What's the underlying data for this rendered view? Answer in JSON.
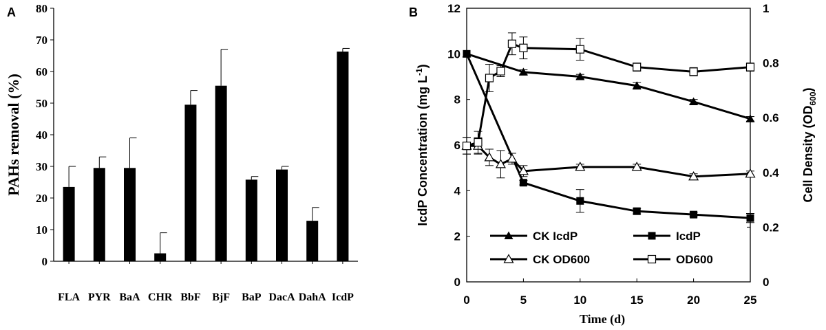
{
  "chart_data": [
    {
      "panel": "A",
      "type": "bar",
      "title": "",
      "xlabel": "",
      "ylabel": "PAHs  removal (%)",
      "ylim": [
        0,
        80
      ],
      "yticks": [
        0,
        10,
        20,
        30,
        40,
        50,
        60,
        70,
        80
      ],
      "categories": [
        "FLA",
        "PYR",
        "BaA",
        "CHR",
        "BbF",
        "BjF",
        "BaP",
        "DacA",
        "DahA",
        "IcdP"
      ],
      "values": [
        23.5,
        29.5,
        29.5,
        2.5,
        49.5,
        55.5,
        25.8,
        29.0,
        12.8,
        66.3
      ],
      "errors": [
        6.5,
        3.5,
        9.5,
        6.5,
        4.5,
        11.5,
        1.0,
        1.0,
        4.2,
        1.0
      ],
      "grid": false
    },
    {
      "panel": "B",
      "type": "line",
      "xlabel": "Time (d)",
      "ylabel_left": "IcdP Concentration (mg L",
      "ylabel_left_sup": "-1",
      "ylabel_left_end": ")",
      "ylabel_right": "Cell Density (OD",
      "ylabel_right_sub": "600",
      "ylabel_right_end": ")",
      "xlim": [
        0,
        25
      ],
      "xticks": [
        0,
        5,
        10,
        15,
        20,
        25
      ],
      "ylim_left": [
        0,
        12
      ],
      "yticks_left": [
        0,
        2,
        4,
        6,
        8,
        10,
        12
      ],
      "ylim_right": [
        0,
        1
      ],
      "yticks_right": [
        "0",
        "0.2",
        "0.4",
        "0.6",
        "0.8",
        "1"
      ],
      "yticks_right_values": [
        0,
        0.2,
        0.4,
        0.6,
        0.8,
        1
      ],
      "grid": false,
      "legend_position": "bottom-center",
      "series": [
        {
          "name": "CK IcdP",
          "axis": "left",
          "marker": "filled-triangle",
          "x": [
            0,
            5,
            10,
            15,
            20,
            25
          ],
          "y": [
            10.0,
            9.2,
            9.0,
            8.6,
            7.9,
            7.15
          ],
          "err": [
            0,
            0.1,
            0.1,
            0.15,
            0.1,
            0.1
          ]
        },
        {
          "name": "IcdP",
          "axis": "left",
          "marker": "filled-square",
          "x": [
            0,
            5,
            10,
            15,
            20,
            25
          ],
          "y": [
            10.0,
            4.35,
            3.55,
            3.1,
            2.95,
            2.8
          ],
          "err": [
            0,
            0.1,
            0.5,
            0.12,
            0.1,
            0.2
          ]
        },
        {
          "name": "CK OD600",
          "axis": "right",
          "marker": "open-triangle",
          "x": [
            0,
            1,
            2,
            3,
            4,
            5,
            10,
            15,
            20,
            25
          ],
          "y": [
            0.497,
            0.497,
            0.455,
            0.43,
            0.45,
            0.405,
            0.42,
            0.42,
            0.385,
            0.395
          ],
          "err": [
            0.03,
            0.03,
            0.03,
            0.05,
            0.02,
            0.02,
            0.01,
            0.01,
            0.01,
            0.01
          ]
        },
        {
          "name": "OD600",
          "axis": "right",
          "marker": "open-square",
          "x": [
            0,
            1,
            2,
            3,
            4,
            5,
            10,
            15,
            20,
            25
          ],
          "y": [
            0.497,
            0.51,
            0.745,
            0.77,
            0.87,
            0.855,
            0.85,
            0.785,
            0.768,
            0.785
          ],
          "err": [
            0.03,
            0.04,
            0.05,
            0.02,
            0.04,
            0.04,
            0.04,
            0.015,
            0.015,
            0.015
          ]
        }
      ]
    }
  ],
  "labels": {
    "panel_a": "A",
    "panel_b": "B"
  }
}
